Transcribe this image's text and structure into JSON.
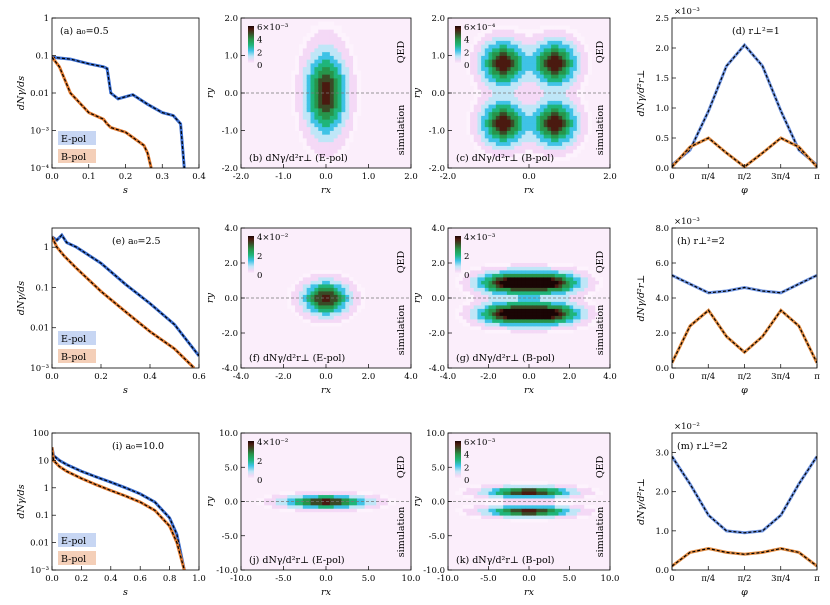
{
  "figure": {
    "qed_label": "QED",
    "sim_label": "simulation",
    "legend_e": "E-pol",
    "legend_b": "B-pol",
    "spectra_ylabel": "dNγ/ds",
    "spectra_xlabel": "s",
    "map_xlabel": "rx",
    "map_ylabel": "ry",
    "ang_xlabel": "φ",
    "ang_ylabel": "dNγ/d²r⊥"
  },
  "chart_data": [
    {
      "type": "line",
      "id": "a",
      "tag": "(a) a₀=0.5",
      "xlabel": "s",
      "ylabel": "dNγ/ds",
      "yscale": "log",
      "xlim": [
        0,
        0.4
      ],
      "ylim": [
        0.0001,
        1
      ],
      "xticks": [
        "0.0",
        "0.1",
        "0.2",
        "0.3",
        "0.4"
      ],
      "yticks": [
        "1",
        "0.1",
        "0.01",
        "10⁻³",
        "10⁻⁴"
      ],
      "legend": [
        "E-pol",
        "B-pol"
      ],
      "series": [
        {
          "name": "E-pol",
          "color": "#3c6fd1",
          "x": [
            0,
            0.05,
            0.1,
            0.14,
            0.15,
            0.16,
            0.18,
            0.22,
            0.26,
            0.3,
            0.33,
            0.35,
            0.36
          ],
          "y": [
            0.09,
            0.08,
            0.06,
            0.05,
            0.045,
            0.01,
            0.007,
            0.009,
            0.005,
            0.003,
            0.0025,
            0.0015,
            0.0001
          ]
        },
        {
          "name": "B-pol",
          "color": "#e07a30",
          "x": [
            0,
            0.02,
            0.05,
            0.1,
            0.14,
            0.15,
            0.16,
            0.2,
            0.25,
            0.26,
            0.27,
            0.28
          ],
          "y": [
            0.09,
            0.05,
            0.01,
            0.003,
            0.002,
            0.0015,
            0.0012,
            0.0009,
            0.0004,
            0.00025,
            0.0001,
            3e-05
          ]
        }
      ]
    },
    {
      "type": "heatmap",
      "id": "b",
      "tag": "(b) dNγ/d²r⊥ (E-pol)",
      "xlabel": "rx",
      "ylabel": "ry",
      "xlim": [
        -2,
        2
      ],
      "ylim": [
        -2,
        2
      ],
      "xticks": [
        "-2.0",
        "-1.0",
        "0.0",
        "1.0",
        "2.0"
      ],
      "yticks": [
        "2.0",
        "1.0",
        "0.0",
        "-1.0",
        "-2.0"
      ],
      "colorbar_ticks": [
        "6×10⁻³",
        "4",
        "2",
        "0"
      ],
      "pattern": {
        "kind": "gauss",
        "blobs": [
          [
            0,
            0,
            0.32,
            0.75
          ]
        ],
        "vmax": 0.006
      }
    },
    {
      "type": "heatmap",
      "id": "c",
      "tag": "(c) dNγ/d²r⊥ (B-pol)",
      "xlabel": "rx",
      "ylabel": "ry",
      "xlim": [
        -2.5,
        2.5
      ],
      "ylim": [
        -2,
        2
      ],
      "xticks": [
        "-2.0",
        "0.0",
        "2.0"
      ],
      "yticks": [
        "2.0",
        "1.0",
        "0.0",
        "-1.0",
        "-2.0"
      ],
      "colorbar_ticks": [
        "6×10⁻⁴",
        "4",
        "2",
        "0"
      ],
      "pattern": {
        "kind": "gauss",
        "blobs": [
          [
            -0.8,
            0.8,
            0.45,
            0.4
          ],
          [
            0.8,
            0.8,
            0.45,
            0.4
          ],
          [
            -0.8,
            -0.8,
            0.45,
            0.4
          ],
          [
            0.8,
            -0.8,
            0.45,
            0.4
          ]
        ],
        "vmax": 0.0006
      }
    },
    {
      "type": "line",
      "id": "d",
      "tag": "(d) r⊥²=1",
      "xlabel": "φ",
      "ylabel": "dNγ/d²r⊥",
      "multiplier": "×10⁻³",
      "xlim": [
        0,
        3.1416
      ],
      "ylim": [
        0,
        2.5
      ],
      "xticks": [
        "0",
        "π/4",
        "π/2",
        "3π/4",
        "π"
      ],
      "yticks": [
        "0.0",
        "0.5",
        "1.0",
        "1.5",
        "2.0",
        "2.5"
      ],
      "series": [
        {
          "name": "E-pol",
          "color": "#6f94e0",
          "x": [
            0,
            0.39,
            0.79,
            1.18,
            1.57,
            1.96,
            2.36,
            2.75,
            3.14
          ],
          "y": [
            0.05,
            0.3,
            0.95,
            1.7,
            2.05,
            1.7,
            0.95,
            0.3,
            0.05
          ]
        },
        {
          "name": "B-pol",
          "color": "#e08a40",
          "x": [
            0,
            0.39,
            0.79,
            1.18,
            1.57,
            1.96,
            2.36,
            2.75,
            3.14
          ],
          "y": [
            0.02,
            0.35,
            0.5,
            0.25,
            0.02,
            0.25,
            0.5,
            0.35,
            0.02
          ]
        }
      ]
    },
    {
      "type": "line",
      "id": "e",
      "tag": "(e) a₀=2.5",
      "xlabel": "s",
      "ylabel": "dNγ/ds",
      "yscale": "log",
      "xlim": [
        0,
        0.6
      ],
      "ylim": [
        0.001,
        3
      ],
      "xticks": [
        "0.0",
        "0.2",
        "0.4",
        "0.6"
      ],
      "yticks": [
        "1",
        "0.1",
        "0.01",
        "10⁻³"
      ],
      "legend": [
        "E-pol",
        "B-pol"
      ],
      "series": [
        {
          "name": "E-pol",
          "color": "#3c6fd1",
          "x": [
            0,
            0.02,
            0.04,
            0.06,
            0.1,
            0.2,
            0.3,
            0.4,
            0.5,
            0.6
          ],
          "y": [
            1.8,
            1.5,
            2.0,
            1.3,
            1.0,
            0.4,
            0.12,
            0.04,
            0.012,
            0.002
          ]
        },
        {
          "name": "B-pol",
          "color": "#e07a30",
          "x": [
            0,
            0.02,
            0.05,
            0.1,
            0.2,
            0.3,
            0.4,
            0.5,
            0.58
          ],
          "y": [
            1.8,
            1.0,
            0.6,
            0.3,
            0.08,
            0.025,
            0.008,
            0.003,
            0.001
          ]
        }
      ]
    },
    {
      "type": "heatmap",
      "id": "f",
      "tag": "(f) dNγ/d²r⊥ (E-pol)",
      "xlabel": "rx",
      "ylabel": "ry",
      "xlim": [
        -5,
        5
      ],
      "ylim": [
        -5,
        5
      ],
      "xticks": [
        "-4.0",
        "-2.0",
        "0.0",
        "2.0",
        "4.0"
      ],
      "yticks": [
        "4.0",
        "2.0",
        "0.0",
        "-2.0",
        "-4.0"
      ],
      "colorbar_ticks": [
        "4×10⁻²",
        "2",
        "0"
      ],
      "pattern": {
        "kind": "gauss",
        "blobs": [
          [
            0,
            0,
            0.9,
            0.8
          ]
        ],
        "vmax": 0.04
      }
    },
    {
      "type": "heatmap",
      "id": "g",
      "tag": "(g) dNγ/d²r⊥ (B-pol)",
      "xlabel": "rx",
      "ylabel": "ry",
      "xlim": [
        -5,
        5
      ],
      "ylim": [
        -5,
        5
      ],
      "xticks": [
        "-4.0",
        "-2.0",
        "0.0",
        "2.0",
        "4.0"
      ],
      "yticks": [
        "4.0",
        "2.0",
        "0.0",
        "-2.0",
        "-4.0"
      ],
      "colorbar_ticks": [
        "4×10⁻³",
        "2",
        "0"
      ],
      "pattern": {
        "kind": "gauss",
        "blobs": [
          [
            -1.3,
            1.1,
            1.3,
            0.55
          ],
          [
            1.3,
            1.1,
            1.3,
            0.55
          ],
          [
            -1.3,
            -1.1,
            1.3,
            0.55
          ],
          [
            1.3,
            -1.1,
            1.3,
            0.55
          ]
        ],
        "vmax": 0.004
      }
    },
    {
      "type": "line",
      "id": "h",
      "tag": "(h) r⊥²=2",
      "xlabel": "φ",
      "ylabel": "dNγ/d²r⊥",
      "multiplier": "×10⁻³",
      "xlim": [
        0,
        3.1416
      ],
      "ylim": [
        0,
        8
      ],
      "xticks": [
        "0",
        "π/4",
        "π/2",
        "3π/4",
        "π"
      ],
      "yticks": [
        "0.0",
        "2.0",
        "4.0",
        "6.0",
        "8.0"
      ],
      "series": [
        {
          "name": "E-pol",
          "color": "#6f94e0",
          "x": [
            0,
            0.39,
            0.79,
            1.18,
            1.57,
            1.96,
            2.36,
            2.75,
            3.14
          ],
          "y": [
            5.3,
            4.8,
            4.3,
            4.4,
            4.6,
            4.4,
            4.3,
            4.8,
            5.3
          ]
        },
        {
          "name": "B-pol",
          "color": "#e08a40",
          "x": [
            0,
            0.39,
            0.79,
            1.18,
            1.57,
            1.96,
            2.36,
            2.75,
            3.14
          ],
          "y": [
            0.3,
            2.4,
            3.3,
            1.8,
            0.9,
            1.8,
            3.3,
            2.4,
            0.3
          ]
        }
      ]
    },
    {
      "type": "line",
      "id": "i",
      "tag": "(i) a₀=10.0",
      "xlabel": "s",
      "ylabel": "dNγ/ds",
      "yscale": "log",
      "xlim": [
        0,
        1
      ],
      "ylim": [
        0.001,
        100
      ],
      "xticks": [
        "0.0",
        "0.2",
        "0.4",
        "0.6",
        "0.8",
        "1.0"
      ],
      "yticks": [
        "100",
        "10",
        "1",
        "0.1",
        "0.01",
        "10⁻³"
      ],
      "legend": [
        "E-pol",
        "B-pol"
      ],
      "series": [
        {
          "name": "E-pol",
          "color": "#3c6fd1",
          "x": [
            0,
            0.01,
            0.05,
            0.1,
            0.2,
            0.3,
            0.4,
            0.5,
            0.6,
            0.7,
            0.8,
            0.85,
            0.9
          ],
          "y": [
            30,
            15,
            10,
            7,
            4,
            2.5,
            1.6,
            1,
            0.6,
            0.3,
            0.08,
            0.02,
            0.001
          ]
        },
        {
          "name": "B-pol",
          "color": "#e07a30",
          "x": [
            0,
            0.01,
            0.05,
            0.1,
            0.2,
            0.3,
            0.4,
            0.5,
            0.6,
            0.7,
            0.8,
            0.85,
            0.9
          ],
          "y": [
            30,
            10,
            6,
            4,
            2.2,
            1.3,
            0.8,
            0.5,
            0.3,
            0.15,
            0.04,
            0.01,
            0.001
          ]
        }
      ]
    },
    {
      "type": "heatmap",
      "id": "j",
      "tag": "(j) dNγ/d²r⊥ (E-pol)",
      "xlabel": "rx",
      "ylabel": "ry",
      "xlim": [
        -10,
        10
      ],
      "ylim": [
        -10,
        10
      ],
      "xticks": [
        "-10.0",
        "-5.0",
        "0.0",
        "5.0",
        "10.0"
      ],
      "yticks": [
        "10.0",
        "5.0",
        "0.0",
        "-5.0",
        "-10.0"
      ],
      "colorbar_ticks": [
        "4×10⁻²",
        "2",
        "0"
      ],
      "pattern": {
        "kind": "gauss",
        "blobs": [
          [
            0,
            0,
            3.3,
            0.65
          ]
        ],
        "vmax": 0.04
      }
    },
    {
      "type": "heatmap",
      "id": "k",
      "tag": "(k) dNγ/d²r⊥ (B-pol)",
      "xlabel": "rx",
      "ylabel": "ry",
      "xlim": [
        -10,
        10
      ],
      "ylim": [
        -10,
        10
      ],
      "xticks": [
        "-10.0",
        "-5.0",
        "0.0",
        "5.0",
        "10.0"
      ],
      "yticks": [
        "10.0",
        "5.0",
        "0.0",
        "-5.0",
        "-10.0"
      ],
      "colorbar_ticks": [
        "6×10⁻³",
        "4",
        "2",
        "0"
      ],
      "pattern": {
        "kind": "gauss",
        "blobs": [
          [
            0,
            1.4,
            3.6,
            0.55
          ],
          [
            0,
            -1.4,
            3.6,
            0.55
          ]
        ],
        "vmax": 0.006
      }
    },
    {
      "type": "line",
      "id": "m",
      "tag": "(m) r⊥²=2",
      "xlabel": "φ",
      "ylabel": "dNγ/d²r⊥",
      "multiplier": "×10⁻²",
      "xlim": [
        0,
        3.1416
      ],
      "ylim": [
        0,
        3.5
      ],
      "xticks": [
        "0",
        "π/4",
        "π/2",
        "3π/4",
        "π"
      ],
      "yticks": [
        "0.0",
        "1.0",
        "2.0",
        "3.0"
      ],
      "series": [
        {
          "name": "E-pol",
          "color": "#6f94e0",
          "x": [
            0,
            0.39,
            0.79,
            1.18,
            1.57,
            1.96,
            2.36,
            2.75,
            3.14
          ],
          "y": [
            2.9,
            2.2,
            1.4,
            1.0,
            0.95,
            1.0,
            1.4,
            2.2,
            2.9
          ]
        },
        {
          "name": "B-pol",
          "color": "#e08a40",
          "x": [
            0,
            0.39,
            0.79,
            1.18,
            1.57,
            1.96,
            2.36,
            2.75,
            3.14
          ],
          "y": [
            0.1,
            0.45,
            0.55,
            0.45,
            0.4,
            0.45,
            0.55,
            0.45,
            0.1
          ]
        }
      ]
    }
  ]
}
